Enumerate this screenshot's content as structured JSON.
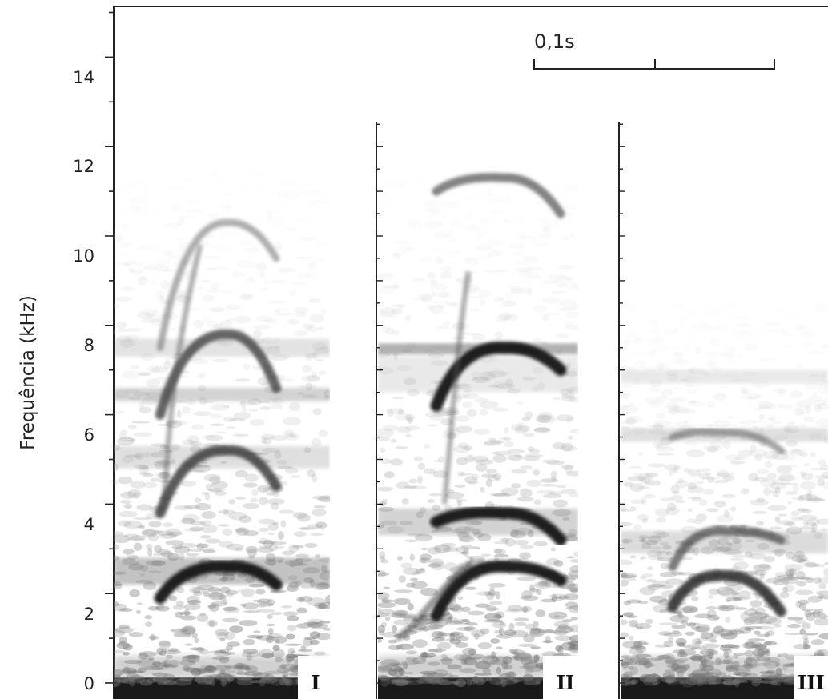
{
  "chart_data": {
    "type": "spectrogram",
    "ylabel": "Frequência (kHz)",
    "ylim": [
      0,
      15.5
    ],
    "y_ticks": [
      "0",
      "2",
      "4",
      "6",
      "8",
      "10",
      "12",
      "14"
    ],
    "grid": false,
    "time_scale": {
      "label": "0,1s",
      "duration_s": 0.1
    },
    "panels": [
      {
        "label": "I",
        "freq_range_khz": [
          0,
          12.5
        ],
        "traces": [
          {
            "harmonic": 1,
            "start_khz": 1.9,
            "peak_khz": 2.6,
            "end_khz": 2.2,
            "intensity": 1.0
          },
          {
            "harmonic": 2,
            "start_khz": 3.8,
            "peak_khz": 5.2,
            "end_khz": 4.4,
            "intensity": 0.75
          },
          {
            "harmonic": 3,
            "start_khz": 6.0,
            "peak_khz": 7.8,
            "end_khz": 6.6,
            "intensity": 0.7
          },
          {
            "harmonic": 4,
            "start_khz": 7.5,
            "peak_khz": 10.3,
            "end_khz": 9.5,
            "intensity": 0.3
          }
        ]
      },
      {
        "label": "II",
        "freq_range_khz": [
          0,
          13
        ],
        "traces": [
          {
            "harmonic": 1,
            "start_khz": 1.5,
            "peak_khz": 2.6,
            "end_khz": 2.3,
            "intensity": 1.0
          },
          {
            "harmonic": 2,
            "start_khz": 3.6,
            "peak_khz": 3.8,
            "end_khz": 3.2,
            "intensity": 1.0
          },
          {
            "harmonic": 3,
            "start_khz": 6.2,
            "peak_khz": 7.5,
            "end_khz": 7.0,
            "intensity": 1.0
          },
          {
            "harmonic": 4,
            "start_khz": 11.0,
            "peak_khz": 11.3,
            "end_khz": 10.5,
            "intensity": 0.55
          }
        ]
      },
      {
        "label": "III",
        "freq_range_khz": [
          0,
          13
        ],
        "traces": [
          {
            "harmonic": 1,
            "start_khz": 1.7,
            "peak_khz": 2.4,
            "end_khz": 1.6,
            "intensity": 0.85
          },
          {
            "harmonic": 2,
            "start_khz": 2.6,
            "peak_khz": 3.4,
            "end_khz": 3.2,
            "intensity": 0.6
          },
          {
            "harmonic": 3,
            "start_khz": 5.5,
            "peak_khz": 5.6,
            "end_khz": 5.2,
            "intensity": 0.35
          }
        ]
      }
    ]
  }
}
